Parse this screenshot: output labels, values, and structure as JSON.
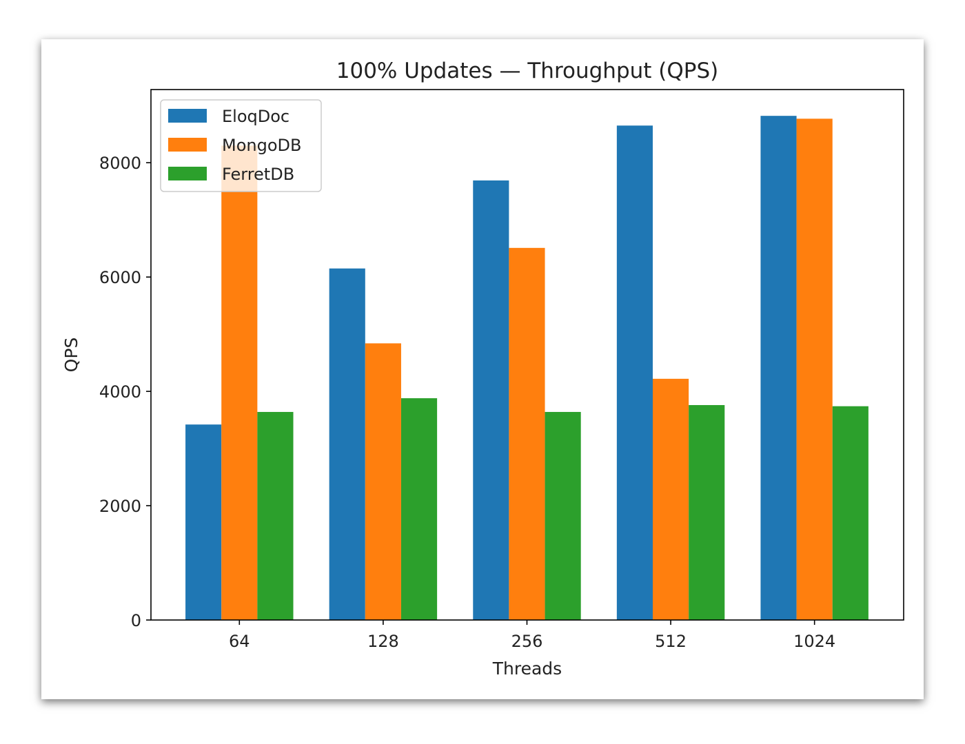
{
  "chart_data": {
    "type": "bar",
    "title": "100% Updates — Throughput (QPS)",
    "xlabel": "Threads",
    "ylabel": "QPS",
    "categories": [
      "64",
      "128",
      "256",
      "512",
      "1024"
    ],
    "series": [
      {
        "name": "EloqDoc",
        "color": "#1f77b4",
        "values": [
          3420,
          6150,
          7690,
          8650,
          8820
        ]
      },
      {
        "name": "MongoDB",
        "color": "#ff7f0e",
        "values": [
          8300,
          4840,
          6510,
          4220,
          8770
        ]
      },
      {
        "name": "FerretDB",
        "color": "#2ca02c",
        "values": [
          3640,
          3880,
          3640,
          3760,
          3740
        ]
      }
    ],
    "ylim": [
      0,
      9280
    ],
    "yticks": [
      0,
      2000,
      4000,
      6000,
      8000
    ],
    "grid": false,
    "legend": "top-left"
  }
}
